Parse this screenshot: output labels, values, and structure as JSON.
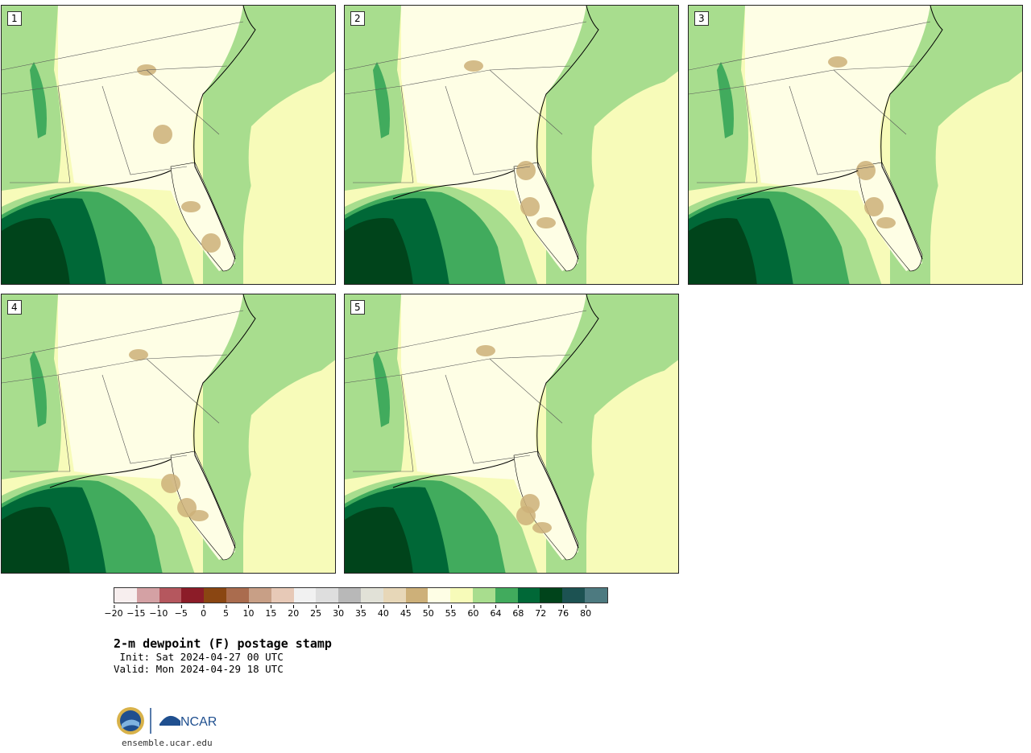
{
  "panels": [
    {
      "label": "1"
    },
    {
      "label": "2"
    },
    {
      "label": "3"
    },
    {
      "label": "4"
    },
    {
      "label": "5"
    }
  ],
  "colorbar": {
    "colors": [
      "#f7eeee",
      "#d4a1a4",
      "#b5575e",
      "#8c1c28",
      "#8a4612",
      "#aa6c4e",
      "#c89f86",
      "#e7c9b7",
      "#f1f1f1",
      "#dedede",
      "#b8b8b8",
      "#e1e1d7",
      "#e7d7b8",
      "#cdb079",
      "#fefee5",
      "#f7fbb9",
      "#a8dd8e",
      "#41ab5d",
      "#006837",
      "#00441b",
      "#1c5252",
      "#4d7a80"
    ],
    "ticks": [
      "−20",
      "−15",
      "−10",
      "−5",
      "0",
      "5",
      "10",
      "15",
      "20",
      "25",
      "30",
      "35",
      "40",
      "45",
      "50",
      "55",
      "60",
      "64",
      "68",
      "72",
      "76",
      "80"
    ]
  },
  "title": "2-m dewpoint (F) postage stamp",
  "init": " Init: Sat 2024-04-27 00 UTC",
  "valid": "Valid: Mon 2024-04-29 18 UTC",
  "logo": {
    "nsf": "NSF",
    "ncar": "NCAR"
  },
  "url": "ensemble.ucar.edu"
}
